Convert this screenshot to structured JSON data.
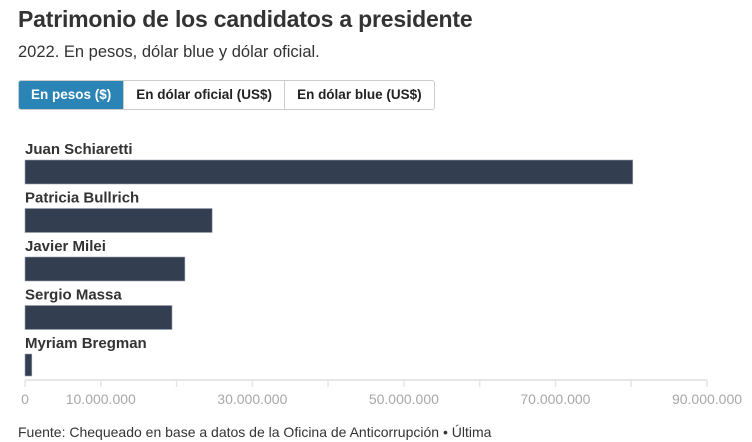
{
  "header": {
    "title": "Patrimonio de los candidatos a presidente",
    "subtitle": "2022. En pesos, dólar blue y dólar oficial."
  },
  "tabs": [
    {
      "label": "En pesos ($)",
      "active": true
    },
    {
      "label": "En dólar oficial (US$)",
      "active": false
    },
    {
      "label": "En dólar blue (US$)",
      "active": false
    }
  ],
  "colors": {
    "bar": "#333e51",
    "tab_active": "#2a84b5",
    "axis": "#e6e6e6",
    "tick_label": "#a8a8a8"
  },
  "chart_data": {
    "type": "bar",
    "orientation": "horizontal",
    "title": "Patrimonio de los candidatos a presidente",
    "categories": [
      "Juan Schiaretti",
      "Patricia Bullrich",
      "Javier Milei",
      "Sergio Massa",
      "Myriam Bregman"
    ],
    "values": [
      80200000,
      24700000,
      21100000,
      19400000,
      900000
    ],
    "xlabel": "",
    "ylabel": "",
    "xlim": [
      0,
      90000000
    ],
    "ticks": [
      0,
      10000000,
      20000000,
      30000000,
      40000000,
      50000000,
      60000000,
      70000000,
      80000000,
      90000000
    ],
    "tick_labels": [
      {
        "value": 0,
        "label": "0"
      },
      {
        "value": 10000000,
        "label": "10.000.000"
      },
      {
        "value": 30000000,
        "label": "30.000.000"
      },
      {
        "value": 50000000,
        "label": "50.000.000"
      },
      {
        "value": 70000000,
        "label": "70.000.000"
      },
      {
        "value": 90000000,
        "label": "90.000.000"
      }
    ],
    "grid": false,
    "legend": "none"
  },
  "footer": {
    "source": "Fuente: Chequeado en base a datos de la Oficina de Anticorrupción • Última"
  }
}
